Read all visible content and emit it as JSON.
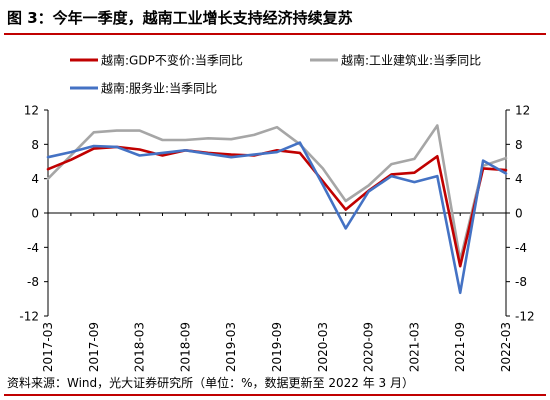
{
  "title": "图 3：今年一季度，越南工业增长支持经济持续复苏",
  "source": "资料来源：Wind，光大证券研究所（单位：%，数据更新至 2022 年 3 月）",
  "chart_data": {
    "type": "line",
    "title": "",
    "xlabel": "",
    "ylabel": "",
    "ylim": [
      -12,
      12
    ],
    "yticks": [
      12,
      8,
      4,
      0,
      -4,
      -8,
      -12
    ],
    "y2lim": [
      -12,
      12
    ],
    "y2ticks": [
      12,
      8,
      4,
      0,
      -4,
      -8,
      -12
    ],
    "legend_position": "top",
    "x_tick_labels": [
      "2017-03",
      "2017-09",
      "2018-03",
      "2018-09",
      "2019-03",
      "2019-09",
      "2020-03",
      "2020-09",
      "2021-03",
      "2021-09",
      "2022-03"
    ],
    "x": [
      "2017-03",
      "2017-06",
      "2017-09",
      "2017-12",
      "2018-03",
      "2018-06",
      "2018-09",
      "2018-12",
      "2019-03",
      "2019-06",
      "2019-09",
      "2019-12",
      "2020-03",
      "2020-06",
      "2020-09",
      "2020-12",
      "2021-03",
      "2021-06",
      "2021-09",
      "2021-12",
      "2022-03"
    ],
    "series": [
      {
        "name": "越南:GDP不变价:当季同比",
        "color": "#c00000",
        "values": [
          5.1,
          6.2,
          7.5,
          7.7,
          7.4,
          6.7,
          7.3,
          7.0,
          6.8,
          6.7,
          7.3,
          7.0,
          3.7,
          0.4,
          2.6,
          4.5,
          4.7,
          6.6,
          -6.2,
          5.2,
          5.0
        ]
      },
      {
        "name": "越南:工业建筑业:当季同比",
        "color": "#a6a6a6",
        "values": [
          4.0,
          6.7,
          9.4,
          9.6,
          9.6,
          8.5,
          8.5,
          8.7,
          8.6,
          9.1,
          10.0,
          8.0,
          5.2,
          1.4,
          3.2,
          5.7,
          6.3,
          10.2,
          -5.5,
          5.5,
          6.4
        ]
      },
      {
        "name": "越南:服务业:当季同比",
        "color": "#4472c4",
        "values": [
          6.5,
          7.1,
          7.8,
          7.7,
          6.7,
          7.0,
          7.3,
          6.9,
          6.5,
          6.8,
          7.1,
          8.2,
          3.3,
          -1.8,
          2.5,
          4.3,
          3.6,
          4.3,
          -9.3,
          6.1,
          4.6
        ]
      }
    ]
  }
}
